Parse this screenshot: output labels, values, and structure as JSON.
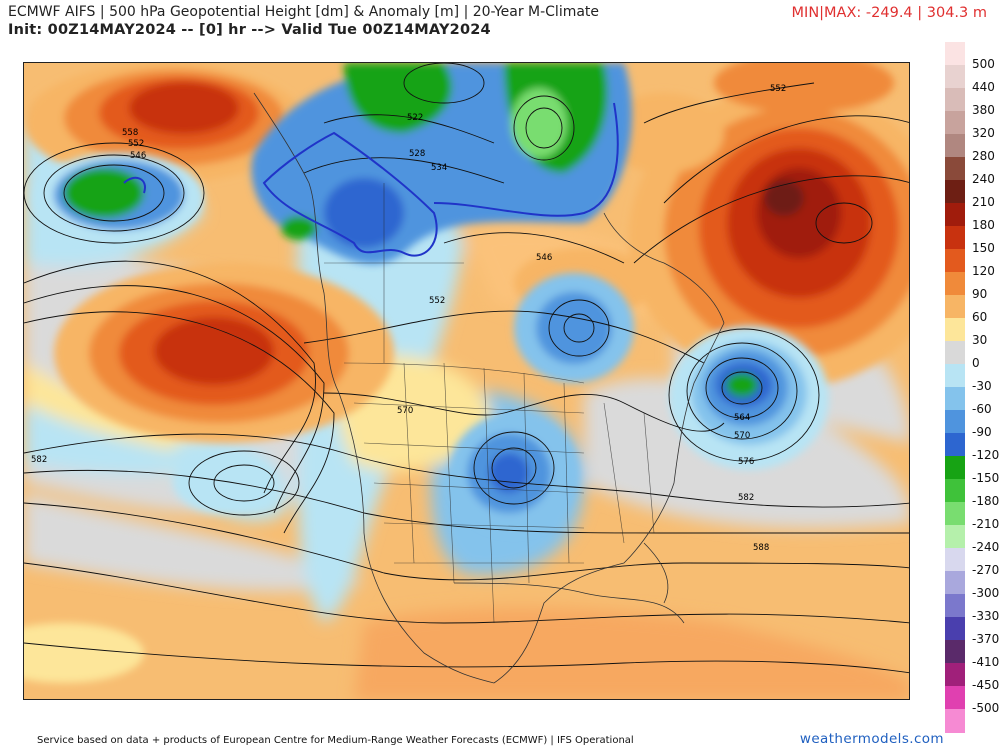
{
  "header": {
    "title_line1": "ECMWF AIFS | 500 hPa Geopotential Height [dm] & Anomaly [m] | 20-Year M-Climate",
    "title_line2": "Init: 00Z14MAY2024 -- [0] hr --> Valid Tue 00Z14MAY2024",
    "minmax": "MIN|MAX: -249.4 | 304.3 m"
  },
  "map": {
    "contour_labels": [
      "558",
      "552",
      "546",
      "522",
      "528",
      "534",
      "552",
      "546",
      "552",
      "570",
      "582",
      "564",
      "570",
      "576",
      "582",
      "588"
    ],
    "anomaly_features": [
      {
        "name": "alaska-aleutian-ridge",
        "sign": "positive",
        "strength": "strong"
      },
      {
        "name": "north-pacific-ridge",
        "sign": "positive",
        "strength": "strong"
      },
      {
        "name": "north-atlantic-ridge",
        "sign": "positive",
        "strength": "strong"
      },
      {
        "name": "bering-low",
        "sign": "negative",
        "strength": "strong"
      },
      {
        "name": "arctic-canada-low",
        "sign": "negative",
        "strength": "strong"
      },
      {
        "name": "greenland-low",
        "sign": "negative",
        "strength": "strong"
      },
      {
        "name": "hudson-bay-low",
        "sign": "negative",
        "strength": "moderate"
      },
      {
        "name": "central-us-low",
        "sign": "negative",
        "strength": "moderate"
      },
      {
        "name": "nova-scotia-low",
        "sign": "negative",
        "strength": "strong"
      }
    ]
  },
  "colorbar": {
    "labels": [
      "500",
      "440",
      "380",
      "320",
      "280",
      "240",
      "210",
      "180",
      "150",
      "120",
      "90",
      "60",
      "30",
      "0",
      "-30",
      "-60",
      "-90",
      "-120",
      "-150",
      "-180",
      "-210",
      "-240",
      "-270",
      "-300",
      "-330",
      "-370",
      "-410",
      "-450",
      "-500"
    ],
    "colors": [
      "#fbe3e3",
      "#e8d2d0",
      "#d9bcb8",
      "#c8a39d",
      "#b08780",
      "#8a4a3a",
      "#6e1f14",
      "#a01c0c",
      "#c8320f",
      "#e35a1e",
      "#f08a3a",
      "#f7b565",
      "#fde69a",
      "#d9d9d9",
      "#b8e4f4",
      "#84c3ec",
      "#4f94de",
      "#2d66d0",
      "#17a314",
      "#3fc23a",
      "#79dd70",
      "#b5f0ab",
      "#d8d8ee",
      "#a9a8dd",
      "#7b78cc",
      "#4a3fae",
      "#5a2a6a",
      "#a0207a",
      "#e040b0",
      "#f68ad3"
    ]
  },
  "footer": {
    "left": "Service based on data + products of European Centre for Medium-Range Weather Forecasts (ECMWF) | IFS Operational",
    "right": "weathermodels.com"
  }
}
